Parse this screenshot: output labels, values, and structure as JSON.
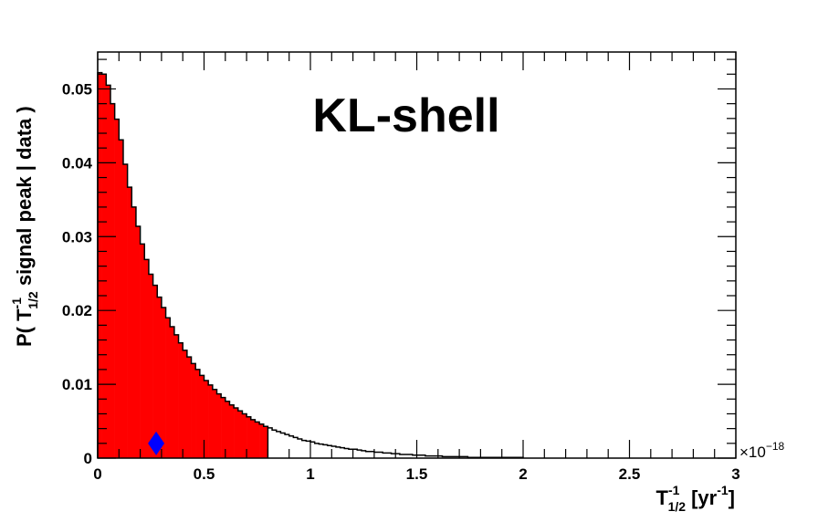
{
  "chart_data": {
    "type": "bar",
    "title": "KL-shell",
    "xlabel": {
      "base": "T",
      "sup": "-1",
      "sub": "1/2",
      "unit_open": "[yr",
      "unit_sup": "-1",
      "unit_close": "]"
    },
    "ylabel": {
      "prefix": "P( T",
      "sup": "-1",
      "sub": "1/2",
      "suffix": " signal peak | data )"
    },
    "x_multiplier": {
      "symbol": "×10",
      "exponent": "−18"
    },
    "xlim": [
      0,
      3
    ],
    "ylim": [
      0,
      0.055
    ],
    "x_ticks": [
      {
        "value": 0,
        "label": "0"
      },
      {
        "value": 0.5,
        "label": "0.5"
      },
      {
        "value": 1,
        "label": "1"
      },
      {
        "value": 1.5,
        "label": "1.5"
      },
      {
        "value": 2,
        "label": "2"
      },
      {
        "value": 2.5,
        "label": "2.5"
      },
      {
        "value": 3,
        "label": "3"
      }
    ],
    "y_ticks": [
      {
        "value": 0,
        "label": "0"
      },
      {
        "value": 0.01,
        "label": "0.01"
      },
      {
        "value": 0.02,
        "label": "0.02"
      },
      {
        "value": 0.03,
        "label": "0.03"
      },
      {
        "value": 0.04,
        "label": "0.04"
      },
      {
        "value": 0.05,
        "label": "0.05"
      }
    ],
    "histogram": {
      "bin_width": 0.02,
      "x_start": 0,
      "fill_until": 0.8,
      "fill_color": "#ff0000",
      "line_color": "#000000",
      "values": [
        0.0522,
        0.052,
        0.0505,
        0.048,
        0.0459,
        0.0431,
        0.0398,
        0.0367,
        0.034,
        0.0314,
        0.029,
        0.0269,
        0.0249,
        0.0234,
        0.0218,
        0.0204,
        0.019,
        0.0178,
        0.0167,
        0.0156,
        0.0146,
        0.0137,
        0.0128,
        0.012,
        0.0112,
        0.0105,
        0.0099,
        0.0093,
        0.0087,
        0.0082,
        0.0077,
        0.0072,
        0.0068,
        0.0064,
        0.006,
        0.0056,
        0.0052,
        0.0049,
        0.0046,
        0.0043,
        0.0041,
        0.0038,
        0.0036,
        0.0034,
        0.0032,
        0.003,
        0.0028,
        0.0026,
        0.0024,
        0.0023,
        0.0022,
        0.002,
        0.0019,
        0.0018,
        0.0017,
        0.0016,
        0.0015,
        0.0014,
        0.0013,
        0.0012,
        0.0012,
        0.0011,
        0.001,
        0.0009,
        0.0009,
        0.0008,
        0.0008,
        0.0007,
        0.0007,
        0.0006,
        0.0006,
        0.0005,
        0.0005,
        0.0005,
        0.0004,
        0.0004,
        0.0004,
        0.0003,
        0.0003,
        0.0003,
        0.0003,
        0.0002,
        0.0002,
        0.0002,
        0.0002,
        0.0002,
        0.0002,
        0.0001,
        0.0001,
        0.0001,
        0.0001,
        0.0001,
        0.0001,
        0.0001,
        0.0001,
        0.0001,
        0.0001,
        0.0001,
        0.0001,
        0.0001
      ]
    },
    "marker": {
      "x": 0.275,
      "y": 0.002,
      "shape": "diamond",
      "color": "#0000ff"
    },
    "grid": false,
    "legend": "none"
  }
}
